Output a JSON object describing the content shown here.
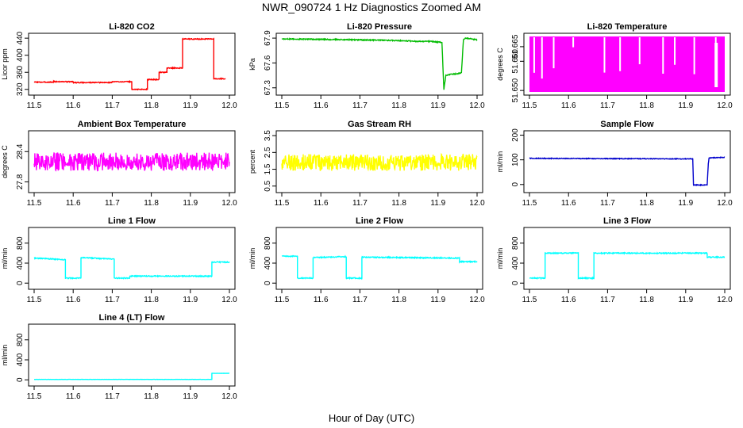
{
  "figure": {
    "title": "NWR_090724  1 Hz Diagnostics Zoomed AM",
    "xlabel": "Hour of Day (UTC)"
  },
  "chart_data": [
    {
      "type": "line",
      "title": "Li-820 CO2",
      "ylabel": "Licor ppm",
      "color": "#ff0000",
      "xlim": [
        11.5,
        12.0
      ],
      "ylim": [
        314,
        444
      ],
      "xticks": [
        "11.5",
        "11.6",
        "11.7",
        "11.8",
        "11.9",
        "12.0"
      ],
      "yticks": [
        "320",
        "360",
        "400",
        "440"
      ],
      "noise": 1,
      "series": [
        {
          "x": [
            11.5,
            11.55,
            11.55,
            11.6,
            11.6,
            11.7,
            11.7,
            11.75,
            11.75,
            11.79,
            11.79,
            11.82,
            11.82,
            11.84,
            11.84,
            11.88,
            11.88,
            11.96,
            11.96,
            11.99
          ],
          "y": [
            337,
            337,
            338,
            338,
            336,
            336,
            338,
            338,
            320,
            320,
            343,
            343,
            360,
            360,
            370,
            370,
            438,
            438,
            345,
            345
          ]
        }
      ]
    },
    {
      "type": "line",
      "title": "Li-820 Pressure",
      "ylabel": "kPa",
      "color": "#00bb00",
      "xlim": [
        11.5,
        12.0
      ],
      "ylim": [
        67.25,
        67.92
      ],
      "xticks": [
        "11.5",
        "11.6",
        "11.7",
        "11.8",
        "11.9",
        "12.0"
      ],
      "yticks": [
        "67.3",
        "67.6",
        "67.9"
      ],
      "noise": 0.006,
      "series": [
        {
          "x": [
            11.5,
            11.6,
            11.75,
            11.8,
            11.85,
            11.88,
            11.91,
            11.915,
            11.92,
            11.93,
            11.95,
            11.96,
            11.965,
            11.97,
            12.0
          ],
          "y": [
            67.89,
            67.885,
            67.875,
            67.87,
            67.86,
            67.86,
            67.85,
            67.28,
            67.45,
            67.46,
            67.47,
            67.48,
            67.88,
            67.9,
            67.88
          ]
        }
      ]
    },
    {
      "type": "line",
      "title": "Li-820 Temperature",
      "ylabel": "degrees C",
      "color": "#ff00ff",
      "xlim": [
        11.5,
        12.0
      ],
      "ylim": [
        51.6495,
        51.6685
      ],
      "xticks": [
        "11.5",
        "11.6",
        "11.7",
        "11.8",
        "11.9",
        "12.0"
      ],
      "yticks": [
        "51.650",
        "51.660",
        "51.665"
      ],
      "band": [
        51.6495,
        51.6685
      ],
      "series": []
    },
    {
      "type": "line",
      "title": "Ambient Box Temperature",
      "ylabel": "degrees C",
      "color": "#ff00ff",
      "xlim": [
        11.5,
        12.0
      ],
      "ylim": [
        27.65,
        28.75
      ],
      "xticks": [
        "11.5",
        "11.6",
        "11.7",
        "11.8",
        "11.9",
        "12.0"
      ],
      "yticks": [
        "27.8",
        "28.4"
      ],
      "noise": 0.18,
      "series": [
        {
          "x": [
            11.5,
            12.0
          ],
          "y": [
            28.2,
            28.2
          ]
        }
      ]
    },
    {
      "type": "line",
      "title": "Gas Stream RH",
      "ylabel": "percent",
      "color": "#ffff00",
      "xlim": [
        11.5,
        12.0
      ],
      "ylim": [
        0.3,
        3.6
      ],
      "xticks": [
        "11.5",
        "11.6",
        "11.7",
        "11.8",
        "11.9",
        "12.0"
      ],
      "yticks": [
        "0.5",
        "1.5",
        "2.5",
        "3.5"
      ],
      "noise": 0.5,
      "series": [
        {
          "x": [
            11.5,
            12.0
          ],
          "y": [
            1.9,
            1.9
          ]
        }
      ]
    },
    {
      "type": "line",
      "title": "Sample Flow",
      "ylabel": "ml/min",
      "color": "#0000cc",
      "xlim": [
        11.5,
        12.0
      ],
      "ylim": [
        -20,
        205
      ],
      "xticks": [
        "11.5",
        "11.6",
        "11.7",
        "11.8",
        "11.9",
        "12.0"
      ],
      "yticks": [
        "0",
        "100",
        "200"
      ],
      "noise": 1.5,
      "series": [
        {
          "x": [
            11.5,
            11.9,
            11.918,
            11.92,
            11.955,
            11.958,
            11.96,
            12.0
          ],
          "y": [
            106,
            104,
            104,
            -2,
            -2,
            85,
            108,
            110
          ]
        }
      ]
    },
    {
      "type": "line",
      "title": "Line 1 Flow",
      "ylabel": "ml/min",
      "color": "#00ffff",
      "xlim": [
        11.5,
        12.0
      ],
      "ylim": [
        -60,
        1050
      ],
      "xticks": [
        "11.5",
        "11.6",
        "11.7",
        "11.8",
        "11.9",
        "12.0"
      ],
      "yticks": [
        "0",
        "400",
        "800"
      ],
      "noise": 10,
      "series": [
        {
          "x": [
            11.5,
            11.58,
            11.58,
            11.62,
            11.62,
            11.705,
            11.705,
            11.745,
            11.745,
            11.955,
            11.955,
            12.0
          ],
          "y": [
            500,
            470,
            100,
            100,
            510,
            480,
            100,
            100,
            140,
            140,
            420,
            420
          ]
        }
      ]
    },
    {
      "type": "line",
      "title": "Line 2 Flow",
      "ylabel": "ml/min",
      "color": "#00ffff",
      "xlim": [
        11.5,
        12.0
      ],
      "ylim": [
        -60,
        1050
      ],
      "xticks": [
        "11.5",
        "11.6",
        "11.7",
        "11.8",
        "11.9",
        "12.0"
      ],
      "yticks": [
        "0",
        "400",
        "800"
      ],
      "noise": 10,
      "series": [
        {
          "x": [
            11.5,
            11.54,
            11.54,
            11.58,
            11.58,
            11.665,
            11.665,
            11.705,
            11.705,
            11.955,
            11.955,
            12.0
          ],
          "y": [
            540,
            540,
            100,
            100,
            510,
            530,
            100,
            100,
            520,
            500,
            430,
            430
          ]
        }
      ]
    },
    {
      "type": "line",
      "title": "Line 3 Flow",
      "ylabel": "ml/min",
      "color": "#00ffff",
      "xlim": [
        11.5,
        12.0
      ],
      "ylim": [
        -60,
        1050
      ],
      "xticks": [
        "11.5",
        "11.6",
        "11.7",
        "11.8",
        "11.9",
        "12.0"
      ],
      "yticks": [
        "0",
        "400",
        "800"
      ],
      "noise": 10,
      "series": [
        {
          "x": [
            11.5,
            11.54,
            11.54,
            11.625,
            11.625,
            11.665,
            11.665,
            11.955,
            11.955,
            12.0
          ],
          "y": [
            100,
            100,
            600,
            600,
            100,
            100,
            600,
            600,
            520,
            520
          ]
        }
      ]
    },
    {
      "type": "line",
      "title": "Line 4 (LT) Flow",
      "ylabel": "ml/min",
      "color": "#00ffff",
      "xlim": [
        11.5,
        12.0
      ],
      "ylim": [
        -60,
        1050
      ],
      "xticks": [
        "11.5",
        "11.6",
        "11.7",
        "11.8",
        "11.9",
        "12.0"
      ],
      "yticks": [
        "0",
        "400",
        "800"
      ],
      "noise": 2,
      "series": [
        {
          "x": [
            11.5,
            11.955,
            11.955,
            12.0
          ],
          "y": [
            8,
            8,
            130,
            130
          ]
        }
      ]
    }
  ]
}
